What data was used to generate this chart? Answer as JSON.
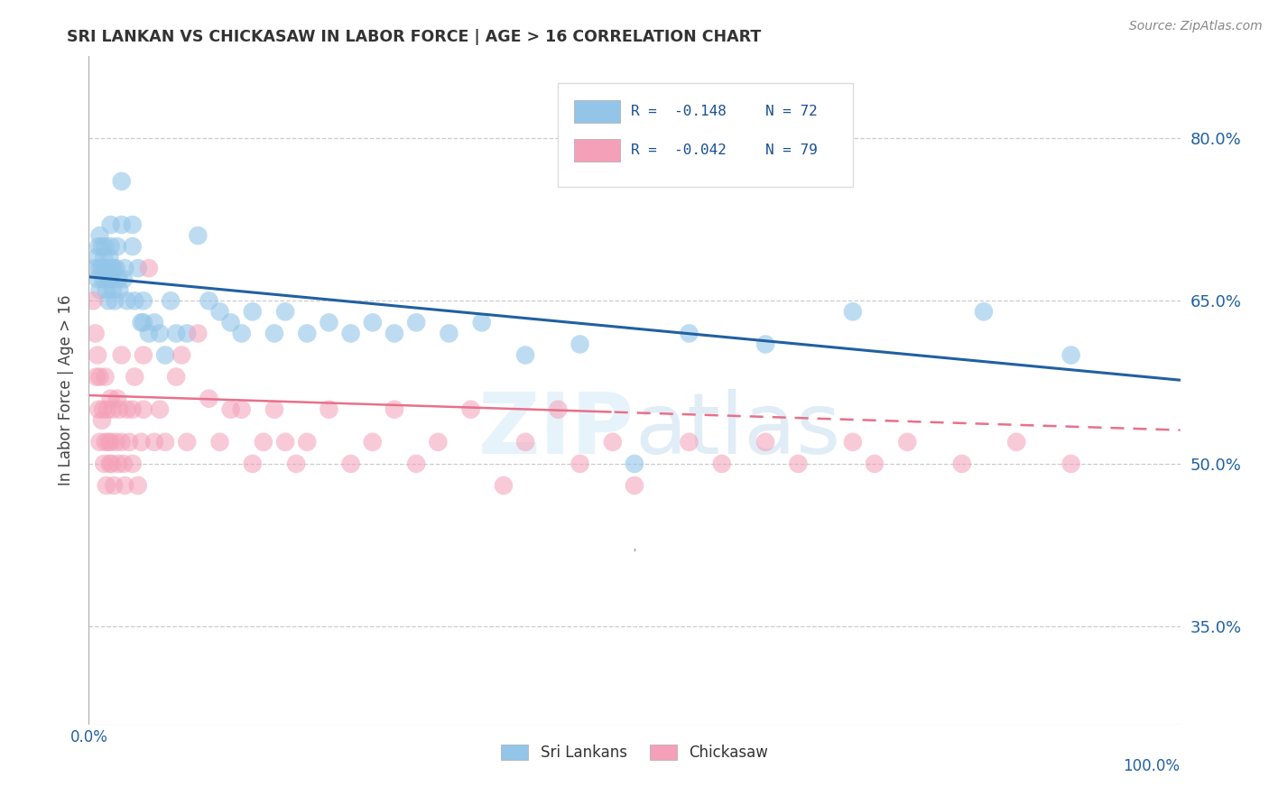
{
  "title": "SRI LANKAN VS CHICKASAW IN LABOR FORCE | AGE > 16 CORRELATION CHART",
  "source": "Source: ZipAtlas.com",
  "ylabel": "In Labor Force | Age > 16",
  "ytick_labels": [
    "35.0%",
    "50.0%",
    "65.0%",
    "80.0%"
  ],
  "ytick_values": [
    0.35,
    0.5,
    0.65,
    0.8
  ],
  "xlim": [
    0.0,
    1.0
  ],
  "ylim": [
    0.26,
    0.875
  ],
  "legend_label_blue": "Sri Lankans",
  "legend_label_pink": "Chickasaw",
  "blue_color": "#93c5e8",
  "pink_color": "#f4a0b8",
  "blue_line_color": "#2060a0",
  "pink_line_color": "#e8708a",
  "watermark_zip": "ZIP",
  "watermark_atlas": "atlas",
  "blue_intercept": 0.672,
  "blue_slope": -0.095,
  "pink_intercept": 0.563,
  "pink_slope": -0.032,
  "blue_scatter_x": [
    0.005,
    0.007,
    0.008,
    0.009,
    0.01,
    0.01,
    0.01,
    0.012,
    0.012,
    0.013,
    0.014,
    0.015,
    0.015,
    0.016,
    0.017,
    0.018,
    0.018,
    0.019,
    0.02,
    0.02,
    0.02,
    0.021,
    0.022,
    0.023,
    0.024,
    0.025,
    0.026,
    0.027,
    0.028,
    0.03,
    0.03,
    0.032,
    0.033,
    0.035,
    0.04,
    0.04,
    0.042,
    0.045,
    0.048,
    0.05,
    0.05,
    0.055,
    0.06,
    0.065,
    0.07,
    0.075,
    0.08,
    0.09,
    0.1,
    0.11,
    0.12,
    0.13,
    0.14,
    0.15,
    0.17,
    0.18,
    0.2,
    0.22,
    0.24,
    0.26,
    0.28,
    0.3,
    0.33,
    0.36,
    0.4,
    0.45,
    0.5,
    0.55,
    0.62,
    0.7,
    0.82,
    0.9
  ],
  "blue_scatter_y": [
    0.68,
    0.69,
    0.67,
    0.7,
    0.71,
    0.68,
    0.66,
    0.7,
    0.68,
    0.67,
    0.69,
    0.68,
    0.7,
    0.66,
    0.68,
    0.67,
    0.65,
    0.69,
    0.7,
    0.72,
    0.67,
    0.68,
    0.66,
    0.68,
    0.65,
    0.68,
    0.7,
    0.67,
    0.66,
    0.76,
    0.72,
    0.67,
    0.68,
    0.65,
    0.72,
    0.7,
    0.65,
    0.68,
    0.63,
    0.65,
    0.63,
    0.62,
    0.63,
    0.62,
    0.6,
    0.65,
    0.62,
    0.62,
    0.71,
    0.65,
    0.64,
    0.63,
    0.62,
    0.64,
    0.62,
    0.64,
    0.62,
    0.63,
    0.62,
    0.63,
    0.62,
    0.63,
    0.62,
    0.63,
    0.6,
    0.61,
    0.5,
    0.62,
    0.61,
    0.64,
    0.64,
    0.6
  ],
  "pink_scatter_x": [
    0.004,
    0.006,
    0.007,
    0.008,
    0.009,
    0.01,
    0.01,
    0.012,
    0.013,
    0.014,
    0.015,
    0.015,
    0.016,
    0.017,
    0.018,
    0.019,
    0.02,
    0.02,
    0.021,
    0.022,
    0.023,
    0.025,
    0.026,
    0.027,
    0.028,
    0.03,
    0.03,
    0.032,
    0.033,
    0.035,
    0.037,
    0.04,
    0.04,
    0.042,
    0.045,
    0.048,
    0.05,
    0.05,
    0.055,
    0.06,
    0.065,
    0.07,
    0.08,
    0.085,
    0.09,
    0.1,
    0.11,
    0.12,
    0.13,
    0.14,
    0.15,
    0.16,
    0.17,
    0.18,
    0.19,
    0.2,
    0.22,
    0.24,
    0.26,
    0.28,
    0.3,
    0.32,
    0.35,
    0.38,
    0.4,
    0.43,
    0.45,
    0.48,
    0.5,
    0.55,
    0.58,
    0.62,
    0.65,
    0.7,
    0.72,
    0.75,
    0.8,
    0.85,
    0.9
  ],
  "pink_scatter_y": [
    0.65,
    0.62,
    0.58,
    0.6,
    0.55,
    0.58,
    0.52,
    0.54,
    0.55,
    0.5,
    0.52,
    0.58,
    0.48,
    0.55,
    0.52,
    0.5,
    0.56,
    0.52,
    0.5,
    0.55,
    0.48,
    0.52,
    0.56,
    0.5,
    0.55,
    0.6,
    0.52,
    0.5,
    0.48,
    0.55,
    0.52,
    0.55,
    0.5,
    0.58,
    0.48,
    0.52,
    0.55,
    0.6,
    0.68,
    0.52,
    0.55,
    0.52,
    0.58,
    0.6,
    0.52,
    0.62,
    0.56,
    0.52,
    0.55,
    0.55,
    0.5,
    0.52,
    0.55,
    0.52,
    0.5,
    0.52,
    0.55,
    0.5,
    0.52,
    0.55,
    0.5,
    0.52,
    0.55,
    0.48,
    0.52,
    0.55,
    0.5,
    0.52,
    0.48,
    0.52,
    0.5,
    0.52,
    0.5,
    0.52,
    0.5,
    0.52,
    0.5,
    0.52,
    0.5
  ]
}
